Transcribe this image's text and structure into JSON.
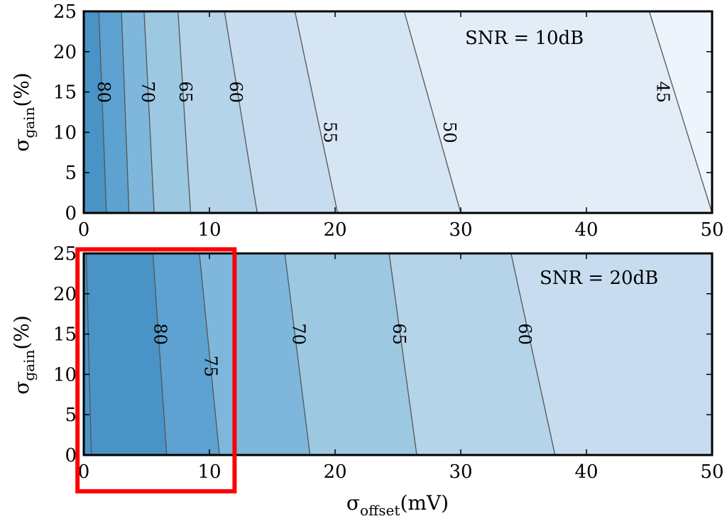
{
  "chart_data": [
    {
      "type": "contour",
      "annotation": "SNR = 10dB",
      "ylabel_main": "σ",
      "ylabel_sub": "gain",
      "ylabel_unit": "(%)",
      "xlim": [
        0,
        50
      ],
      "ylim": [
        0,
        25
      ],
      "x_ticks": [
        "0",
        "10",
        "20",
        "30",
        "40",
        "50"
      ],
      "y_ticks": [
        "0",
        "5",
        "10",
        "15",
        "20",
        "25"
      ],
      "contour_lines": [
        {
          "level": "80",
          "x_at_y0": 1.8,
          "x_at_y25": 1.2,
          "fill_left": "#4a93c6"
        },
        {
          "level": "70",
          "x_at_y0": 3.6,
          "x_at_y25": 3.0,
          "fill_left": "#5da2d1"
        },
        {
          "level": "65",
          "x_at_y0": 5.6,
          "x_at_y25": 4.8,
          "fill_left": "#7eb7db"
        },
        {
          "level": "60",
          "x_at_y0": 8.5,
          "x_at_y25": 7.5,
          "fill_left": "#9cc8e1"
        },
        {
          "level": "55",
          "x_at_y0": 13.8,
          "x_at_y25": 11.2,
          "fill_left": "#b5d4ea"
        },
        {
          "level": "50",
          "x_at_y0": 20.2,
          "x_at_y25": 16.8,
          "fill_left": "#c8dcef"
        },
        {
          "level": "45",
          "x_at_y0": 30.0,
          "x_at_y25": 25.5,
          "fill_left": "#d6e5f4"
        },
        {
          "level": "",
          "x_at_y0": 50.0,
          "x_at_y25": 45.0,
          "fill_left": "#e3edf8"
        }
      ],
      "fill_right": "#eef4fb",
      "label_positions": [
        {
          "text": "80",
          "x": 1.5,
          "y": 15
        },
        {
          "text": "70",
          "x": 5.0,
          "y": 15
        },
        {
          "text": "65",
          "x": 8.0,
          "y": 15
        },
        {
          "text": "60",
          "x": 12.0,
          "y": 15
        },
        {
          "text": "55",
          "x": 19.5,
          "y": 10
        },
        {
          "text": "50",
          "x": 29.0,
          "y": 10
        },
        {
          "text": "45",
          "x": 46.0,
          "y": 15
        }
      ]
    },
    {
      "type": "contour",
      "annotation": "SNR = 20dB",
      "ylabel_main": "σ",
      "ylabel_sub": "gain",
      "ylabel_unit": "(%)",
      "xlabel_main": "σ",
      "xlabel_sub": "offset",
      "xlabel_unit": "(mV)",
      "xlim": [
        0,
        50
      ],
      "ylim": [
        0,
        25
      ],
      "x_ticks": [
        "0",
        "10",
        "20",
        "30",
        "40",
        "50"
      ],
      "y_ticks": [
        "0",
        "5",
        "10",
        "15",
        "20",
        "25"
      ],
      "contour_lines": [
        {
          "level": "80",
          "x_at_y0": 6.6,
          "x_at_y25": 5.5,
          "fill_left": "#4a93c6"
        },
        {
          "level": "75",
          "x_at_y0": 10.8,
          "x_at_y25": 9.2,
          "fill_left": "#5da2d1"
        },
        {
          "level": "70",
          "x_at_y0": 18.0,
          "x_at_y25": 16.0,
          "fill_left": "#7eb7db"
        },
        {
          "level": "65",
          "x_at_y0": 26.5,
          "x_at_y25": 24.3,
          "fill_left": "#9cc8e1"
        },
        {
          "level": "60",
          "x_at_y0": 37.5,
          "x_at_y25": 34.0,
          "fill_left": "#b5d4ea"
        }
      ],
      "fill_right": "#c8dcef",
      "edge_line": {
        "x_at_y0": 0.6,
        "x_at_y25": 0.2
      },
      "label_positions": [
        {
          "text": "80",
          "x": 6.0,
          "y": 15
        },
        {
          "text": "75",
          "x": 10.0,
          "y": 11
        },
        {
          "text": "70",
          "x": 17.0,
          "y": 15
        },
        {
          "text": "65",
          "x": 25.0,
          "y": 15
        },
        {
          "text": "60",
          "x": 35.0,
          "y": 15
        }
      ],
      "highlight": {
        "x_range": [
          -0.5,
          12.0
        ],
        "y_range": [
          -4.5,
          25.5
        ],
        "color": "#ff0000"
      }
    }
  ]
}
